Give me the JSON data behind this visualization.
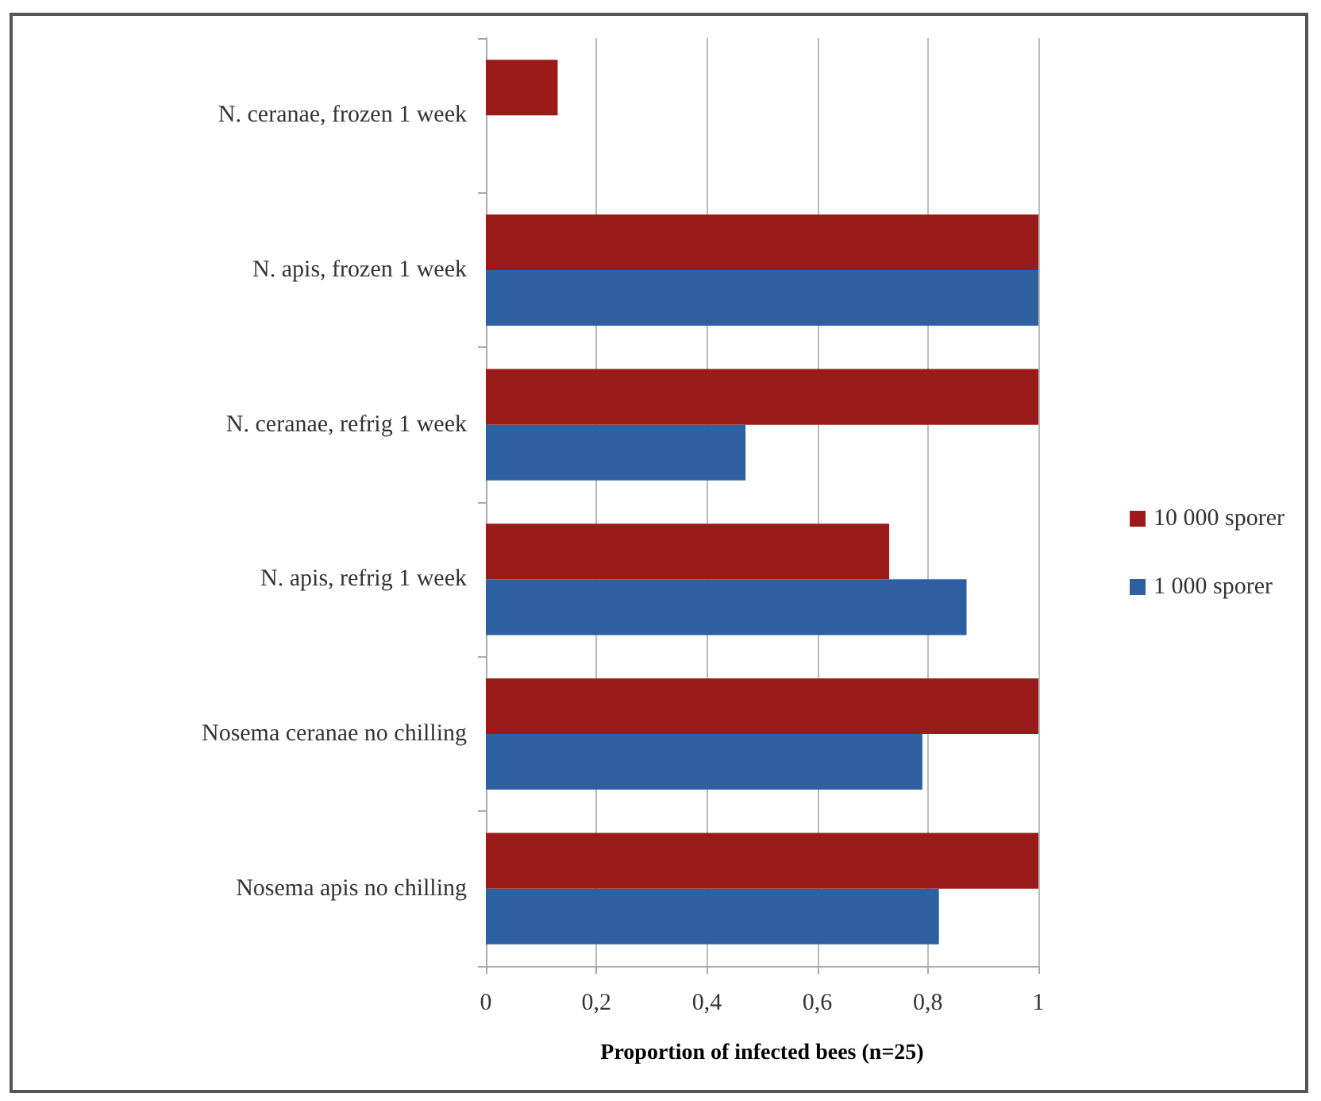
{
  "chart_data": {
    "type": "bar",
    "orientation": "horizontal",
    "xlabel": "Proportion of infected bees (n=25)",
    "categories": [
      "N. ceranae, frozen 1 week",
      "N. apis, frozen 1 week",
      "N. ceranae, refrig 1 week",
      "N. apis, refrig 1 week",
      "Nosema ceranae no chilling",
      "Nosema apis no chilling"
    ],
    "series": [
      {
        "name": "10 000 sporer",
        "color": "#9b1b1b",
        "values": [
          0.13,
          1,
          1,
          0.73,
          1,
          1
        ]
      },
      {
        "name": "1 000 sporer",
        "color": "#2e5f9e",
        "values": [
          0,
          1,
          0.47,
          0.87,
          0.79,
          0.82
        ]
      }
    ],
    "xlim": [
      0,
      1
    ],
    "xticks": [
      0,
      {
        "value": 0.2,
        "label": "0,2"
      },
      {
        "value": 0.4,
        "label": "0,4"
      },
      {
        "value": 0.6,
        "label": "0,6"
      },
      {
        "value": 0.8,
        "label": "0,8"
      },
      1
    ],
    "grid": "x",
    "legend": "right"
  }
}
